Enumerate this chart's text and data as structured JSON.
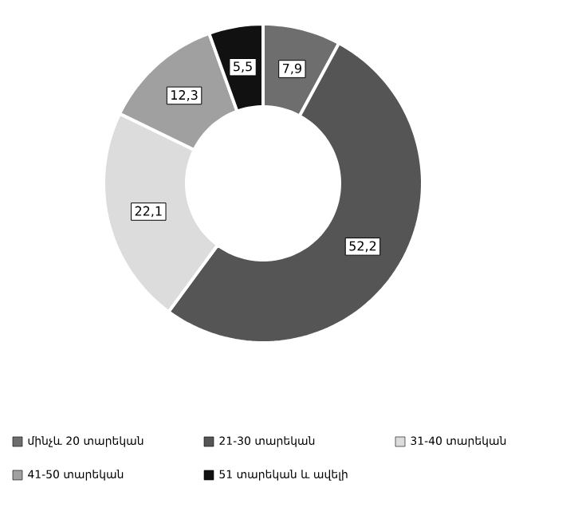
{
  "chart_data": {
    "type": "donut",
    "categories": [
      "մինչև 20 տարեկան",
      "21-30 տարեկան",
      "31-40 տարեկան",
      "41-50 տարեկան",
      "51 տարեկան և ավելի"
    ],
    "values": [
      7.9,
      52.2,
      22.1,
      12.3,
      5.5
    ],
    "value_labels": [
      "7,9",
      "52,2",
      "22,1",
      "12,3",
      "5,5"
    ],
    "colors": [
      "#6e6e6e",
      "#555555",
      "#dcdcdc",
      "#a0a0a0",
      "#111111"
    ],
    "legend": "bottom"
  }
}
